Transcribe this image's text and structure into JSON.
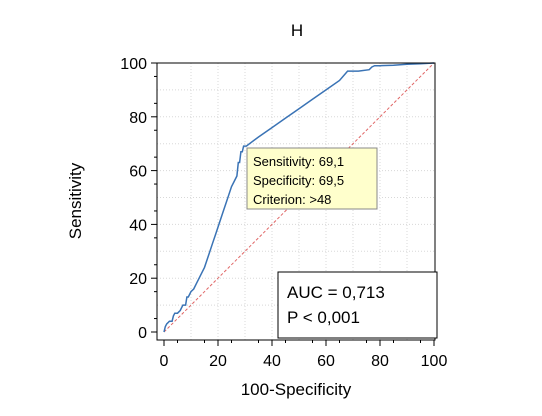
{
  "chart_data": {
    "type": "line",
    "title": "H",
    "xlabel": "100-Specificity",
    "ylabel": "Sensitivity",
    "xlim": [
      0,
      100
    ],
    "ylim": [
      0,
      100
    ],
    "xticks": [
      "0",
      "20",
      "40",
      "60",
      "80",
      "100"
    ],
    "yticks": [
      "0",
      "20",
      "40",
      "60",
      "80",
      "100"
    ],
    "grid": true,
    "series": [
      {
        "kind": "roc-curve",
        "color": "#3a73b5",
        "x": [
          0,
          0.5,
          1,
          1.5,
          2,
          3,
          3.5,
          4,
          5,
          6,
          7,
          8,
          8.5,
          9,
          10,
          11,
          12,
          13,
          14,
          15,
          16,
          17,
          18,
          19,
          20,
          21,
          22,
          23,
          24,
          25,
          26,
          27,
          27.5,
          28,
          28.5,
          29,
          29.5,
          30.5,
          35,
          40,
          45,
          50,
          55,
          60,
          65,
          68,
          72,
          76,
          77,
          78,
          80,
          85,
          90,
          95,
          100
        ],
        "y": [
          0,
          2,
          3,
          3.5,
          4,
          4,
          6,
          7,
          7,
          8,
          10,
          10,
          13,
          13,
          15,
          16,
          18,
          20,
          22,
          24,
          27,
          30,
          33,
          36,
          39,
          42,
          45,
          48,
          51,
          54,
          56,
          58,
          63,
          63,
          67,
          67,
          69.1,
          69.1,
          72.5,
          76,
          79.5,
          83,
          86.5,
          90,
          93.5,
          97,
          97,
          97.5,
          98.5,
          99,
          99,
          99.2,
          99.5,
          99.7,
          100
        ]
      },
      {
        "kind": "reference-diagonal",
        "color": "#e06666",
        "x": [
          0,
          100
        ],
        "y": [
          0,
          100
        ]
      }
    ],
    "criterion_point": {
      "x": 30.5,
      "y": 69.1
    },
    "tooltip": {
      "lines": [
        "Sensitivity: 69,1",
        "Specificity: 69,5",
        "Criterion: >48"
      ],
      "background": "#ffffcc"
    },
    "stats_box": {
      "lines": [
        "AUC = 0,713",
        "P < 0,001"
      ]
    }
  }
}
